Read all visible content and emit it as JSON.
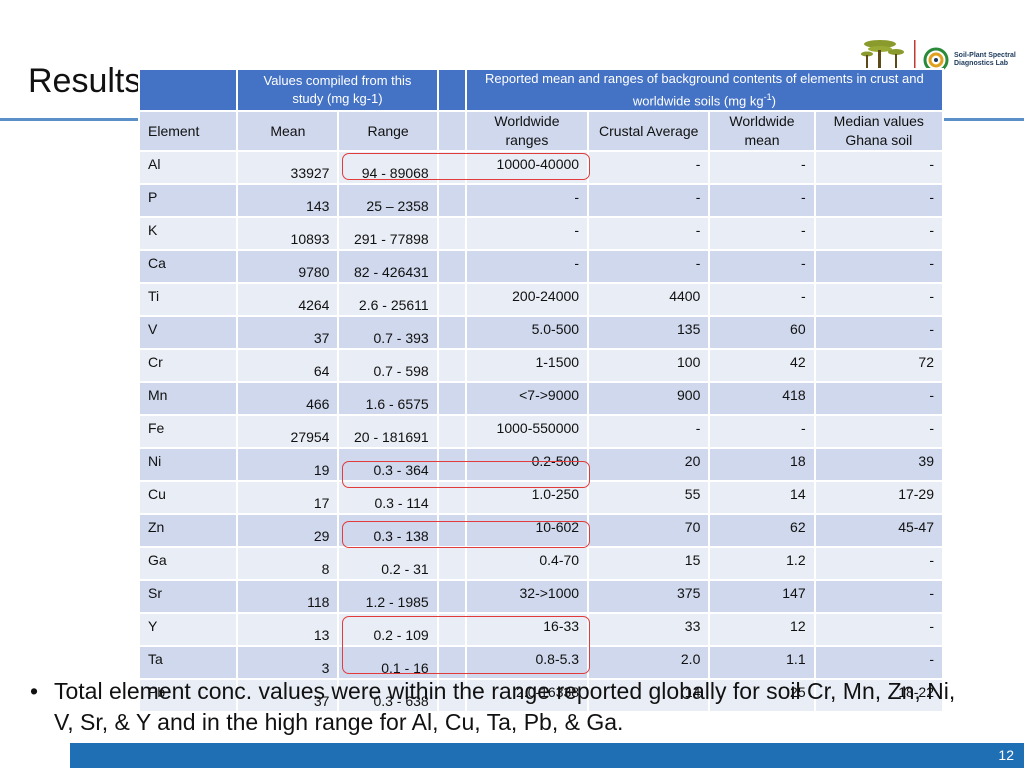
{
  "slide": {
    "title": "Results",
    "page_number": "12",
    "bullet": "Total element conc. values were within the range reported globally for soil Cr, Mn, Zn, Ni, V, Sr, & Y and in the high range for Al, Cu, Ta, Pb, & Ga.",
    "logo": {
      "line1": "Soil-Plant Spectral",
      "line2": "Diagnostics Lab",
      "tree_color": "#8a9a2c",
      "accent_color": "#c23a2c"
    }
  },
  "table": {
    "group_headers": {
      "compiled": "Values compiled from this study (mg kg-1)",
      "reported_prefix": "Reported mean and ranges of background contents of elements in crust and worldwide soils (mg kg",
      "reported_sup": "-1",
      "reported_suffix": ")"
    },
    "columns": {
      "element": "Element",
      "mean": "Mean",
      "range": "Range",
      "worldwide_ranges": "Worldwide ranges",
      "crustal_average": "Crustal Average",
      "worldwide_mean": "Worldwide mean",
      "median_ghana": "Median values Ghana soil"
    },
    "rows": [
      {
        "element": "Al",
        "mean": "33927",
        "range": "94 - 89068",
        "worldwide_ranges": "10000-40000",
        "crustal_average": "-",
        "worldwide_mean": "-",
        "median_ghana": "-"
      },
      {
        "element": "P",
        "mean": "143",
        "range": "25 – 2358",
        "worldwide_ranges": "-",
        "crustal_average": "-",
        "worldwide_mean": "-",
        "median_ghana": "-"
      },
      {
        "element": "K",
        "mean": "10893",
        "range": "291 - 77898",
        "worldwide_ranges": "-",
        "crustal_average": "-",
        "worldwide_mean": "-",
        "median_ghana": "-"
      },
      {
        "element": "Ca",
        "mean": "9780",
        "range": "82 - 426431",
        "worldwide_ranges": "-",
        "crustal_average": "-",
        "worldwide_mean": "-",
        "median_ghana": "-"
      },
      {
        "element": "Ti",
        "mean": "4264",
        "range": "2.6 - 25611",
        "worldwide_ranges": "200-24000",
        "crustal_average": "4400",
        "worldwide_mean": "-",
        "median_ghana": "-"
      },
      {
        "element": "V",
        "mean": "37",
        "range": "0.7 - 393",
        "worldwide_ranges": "5.0-500",
        "crustal_average": "135",
        "worldwide_mean": "60",
        "median_ghana": "-"
      },
      {
        "element": "Cr",
        "mean": "64",
        "range": "0.7 - 598",
        "worldwide_ranges": "1-1500",
        "crustal_average": "100",
        "worldwide_mean": "42",
        "median_ghana": "72"
      },
      {
        "element": "Mn",
        "mean": "466",
        "range": "1.6 - 6575",
        "worldwide_ranges": "<7->9000",
        "crustal_average": "900",
        "worldwide_mean": "418",
        "median_ghana": "-"
      },
      {
        "element": "Fe",
        "mean": "27954",
        "range": "20 - 181691",
        "worldwide_ranges": "1000-550000",
        "crustal_average": "-",
        "worldwide_mean": "-",
        "median_ghana": "-"
      },
      {
        "element": "Ni",
        "mean": "19",
        "range": "0.3 - 364",
        "worldwide_ranges": "0.2-500",
        "crustal_average": "20",
        "worldwide_mean": "18",
        "median_ghana": "39"
      },
      {
        "element": "Cu",
        "mean": "17",
        "range": "0.3 - 114",
        "worldwide_ranges": "1.0-250",
        "crustal_average": "55",
        "worldwide_mean": "14",
        "median_ghana": "17-29"
      },
      {
        "element": "Zn",
        "mean": "29",
        "range": "0.3 - 138",
        "worldwide_ranges": "10-602",
        "crustal_average": "70",
        "worldwide_mean": "62",
        "median_ghana": "45-47"
      },
      {
        "element": "Ga",
        "mean": "8",
        "range": "0.2 - 31",
        "worldwide_ranges": "0.4-70",
        "crustal_average": "15",
        "worldwide_mean": "1.2",
        "median_ghana": "-"
      },
      {
        "element": "Sr",
        "mean": "118",
        "range": "1.2 - 1985",
        "worldwide_ranges": "32->1000",
        "crustal_average": "375",
        "worldwide_mean": "147",
        "median_ghana": "-"
      },
      {
        "element": "Y",
        "mean": "13",
        "range": "0.2 - 109",
        "worldwide_ranges": "16-33",
        "crustal_average": "33",
        "worldwide_mean": "12",
        "median_ghana": "-"
      },
      {
        "element": "Ta",
        "mean": "3",
        "range": "0.1 - 16",
        "worldwide_ranges": "0.8-5.3",
        "crustal_average": "2.0",
        "worldwide_mean": "1.1",
        "median_ghana": "-"
      },
      {
        "element": "Pb",
        "mean": "37",
        "range": "0.3 - 638",
        "worldwide_ranges": "2.0-16338",
        "crustal_average": "14",
        "worldwide_mean": "25",
        "median_ghana": "18-22"
      }
    ],
    "highlight_color": "#e23b3b"
  }
}
